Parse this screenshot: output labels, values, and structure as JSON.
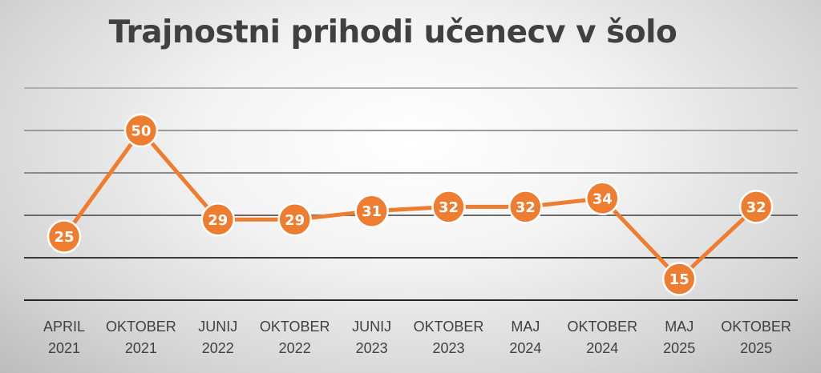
{
  "chart_data": {
    "type": "line",
    "title": "Trajnostni prihodi učenecv v šolo",
    "xlabel": "",
    "ylabel": "",
    "ylim": [
      10,
      60
    ],
    "grid": true,
    "legend": "none",
    "categories": [
      [
        "APRIL",
        "2021"
      ],
      [
        "OKTOBER",
        "2021"
      ],
      [
        "JUNIJ",
        "2022"
      ],
      [
        "OKTOBER",
        "2022"
      ],
      [
        "JUNIJ",
        "2023"
      ],
      [
        "OKTOBER",
        "2023"
      ],
      [
        "MAJ",
        "2024"
      ],
      [
        "OKTOBER",
        "2024"
      ],
      [
        "MAJ",
        "2025"
      ],
      [
        "OKTOBER",
        "2025"
      ]
    ],
    "series": [
      {
        "values": [
          25,
          50,
          29,
          29,
          31,
          32,
          32,
          34,
          15,
          32
        ]
      }
    ],
    "data_labels": true,
    "line_color": "#ED7D31",
    "gridline_colors": [
      "#b0b0b0",
      "#9a9a9a",
      "#8a8a8a",
      "#6a6a6a",
      "#3a3a3a",
      "#262626"
    ]
  }
}
